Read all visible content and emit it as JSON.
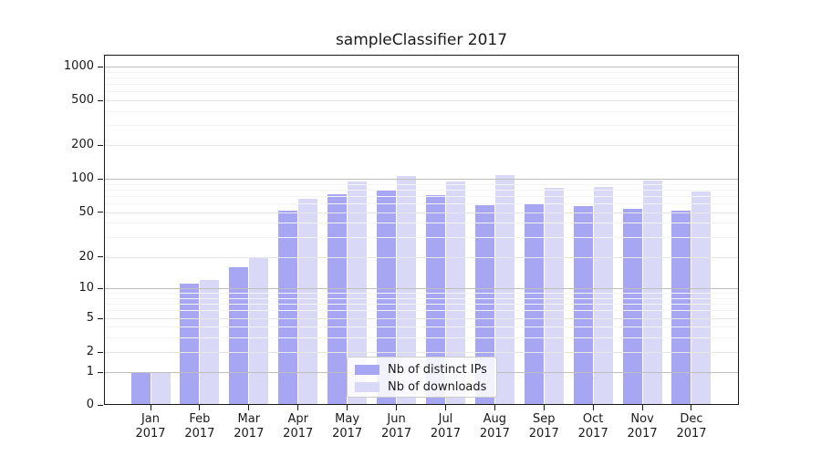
{
  "chart_data": {
    "type": "bar",
    "title": "sampleClassifier 2017",
    "categories": [
      "Jan",
      "Feb",
      "Mar",
      "Apr",
      "May",
      "Jun",
      "Jul",
      "Aug",
      "Sep",
      "Oct",
      "Nov",
      "Dec"
    ],
    "x_tick_second_line": "2017",
    "series": [
      {
        "name": "Nb of distinct IPs",
        "color": "#a6a6f2",
        "values": [
          1,
          11,
          16,
          51,
          72,
          78,
          71,
          58,
          60,
          57,
          53,
          51
        ]
      },
      {
        "name": "Nb of downloads",
        "color": "#d9d9f7",
        "values": [
          1,
          12,
          20,
          66,
          94,
          105,
          94,
          108,
          83,
          85,
          97,
          77
        ]
      }
    ],
    "y_scale": "log (linear segment below 1)",
    "y_ticks": [
      0,
      1,
      2,
      5,
      10,
      20,
      50,
      100,
      200,
      500,
      1000
    ],
    "ylim": [
      0,
      1280
    ],
    "grid": true,
    "legend": {
      "position": "bottom-center-inside"
    }
  }
}
